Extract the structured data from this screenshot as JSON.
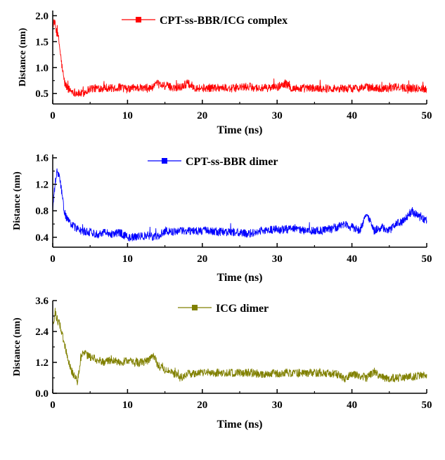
{
  "chart_data": [
    {
      "type": "line",
      "xlabel": "Time (ns)",
      "ylabel": "Distance (nm)",
      "xlim": [
        0,
        50
      ],
      "ylim": [
        0.3,
        2.1
      ],
      "xticks": [
        "0",
        "10",
        "20",
        "30",
        "40",
        "50"
      ],
      "yticks": [
        "0.5",
        "1.0",
        "1.5",
        "2.0"
      ],
      "xtick_values": [
        0,
        10,
        20,
        30,
        40,
        50
      ],
      "ytick_values": [
        0.5,
        1.0,
        1.5,
        2.0
      ],
      "legend_location": "top-center",
      "grid": false,
      "series": [
        {
          "name": "CPT-ss-BBR/ICG complex",
          "color": "#ff0000",
          "x": [
            0,
            0.2,
            0.5,
            0.8,
            1.0,
            1.3,
            1.6,
            2.0,
            2.5,
            3.0,
            3.5,
            4.0,
            5,
            6,
            7,
            8,
            9,
            10,
            11,
            12,
            13,
            14,
            15,
            16,
            17,
            18,
            19,
            20,
            22,
            24,
            26,
            28,
            30,
            31,
            32,
            34,
            36,
            38,
            40,
            42,
            44,
            46,
            48,
            50
          ],
          "values": [
            1.8,
            1.9,
            1.7,
            1.55,
            1.3,
            0.95,
            0.7,
            0.6,
            0.55,
            0.52,
            0.5,
            0.5,
            0.6,
            0.6,
            0.62,
            0.6,
            0.62,
            0.58,
            0.62,
            0.6,
            0.6,
            0.68,
            0.65,
            0.62,
            0.62,
            0.7,
            0.62,
            0.6,
            0.62,
            0.6,
            0.63,
            0.6,
            0.62,
            0.7,
            0.6,
            0.6,
            0.6,
            0.6,
            0.6,
            0.62,
            0.6,
            0.62,
            0.6,
            0.6
          ]
        }
      ]
    },
    {
      "type": "line",
      "xlabel": "Time (ns)",
      "ylabel": "Distance (nm)",
      "xlim": [
        0,
        50
      ],
      "ylim": [
        0.25,
        1.65
      ],
      "xticks": [
        "0",
        "10",
        "20",
        "30",
        "40",
        "50"
      ],
      "yticks": [
        "0.4",
        "0.8",
        "1.2",
        "1.6"
      ],
      "xtick_values": [
        0,
        10,
        20,
        30,
        40,
        50
      ],
      "ytick_values": [
        0.4,
        0.8,
        1.2,
        1.6
      ],
      "legend_location": "top-center",
      "grid": false,
      "series": [
        {
          "name": "CPT-ss-BBR dimer",
          "color": "#0000ff",
          "x": [
            0,
            0.3,
            0.6,
            0.9,
            1.2,
            1.5,
            2,
            3,
            4,
            5,
            6,
            7,
            8,
            9,
            10,
            11,
            12,
            13,
            14,
            15,
            16,
            18,
            20,
            22,
            24,
            26,
            28,
            30,
            32,
            34,
            36,
            38,
            39,
            40,
            41,
            42,
            43,
            44,
            45,
            46,
            47,
            48,
            49,
            50
          ],
          "values": [
            0.8,
            1.2,
            1.4,
            1.3,
            1.1,
            0.8,
            0.65,
            0.55,
            0.48,
            0.48,
            0.45,
            0.48,
            0.45,
            0.47,
            0.4,
            0.4,
            0.42,
            0.42,
            0.4,
            0.5,
            0.48,
            0.5,
            0.5,
            0.48,
            0.48,
            0.45,
            0.5,
            0.52,
            0.52,
            0.5,
            0.5,
            0.55,
            0.6,
            0.55,
            0.5,
            0.75,
            0.5,
            0.55,
            0.5,
            0.6,
            0.65,
            0.8,
            0.7,
            0.65
          ]
        }
      ]
    },
    {
      "type": "line",
      "xlabel": "Time (ns)",
      "ylabel": "Distance (nm)",
      "xlim": [
        0,
        50
      ],
      "ylim": [
        0,
        3.6
      ],
      "xticks": [
        "0",
        "10",
        "20",
        "30",
        "40",
        "50"
      ],
      "yticks": [
        "0.0",
        "1.2",
        "2.4",
        "3.6"
      ],
      "xtick_values": [
        0,
        10,
        20,
        30,
        40,
        50
      ],
      "ytick_values": [
        0,
        1.2,
        2.4,
        3.6
      ],
      "legend_location": "top-center",
      "grid": false,
      "series": [
        {
          "name": "ICG dimer",
          "color": "#808000",
          "x": [
            0,
            0.3,
            0.6,
            1.0,
            1.5,
            2.0,
            2.5,
            3.0,
            3.3,
            3.6,
            4,
            5,
            6,
            7,
            8,
            9,
            10,
            11,
            12,
            13,
            13.5,
            14,
            15,
            16,
            17,
            18,
            20,
            22,
            24,
            26,
            28,
            30,
            32,
            34,
            36,
            38,
            39,
            40,
            42,
            43,
            44,
            46,
            48,
            50
          ],
          "values": [
            2.6,
            3.1,
            2.9,
            2.6,
            2.0,
            1.4,
            0.9,
            0.6,
            0.45,
            1.1,
            1.6,
            1.4,
            1.3,
            1.2,
            1.3,
            1.2,
            1.25,
            1.2,
            1.2,
            1.3,
            1.5,
            1.1,
            0.9,
            0.8,
            0.6,
            0.75,
            0.8,
            0.8,
            0.78,
            0.8,
            0.75,
            0.78,
            0.8,
            0.78,
            0.8,
            0.75,
            0.55,
            0.75,
            0.6,
            0.85,
            0.6,
            0.6,
            0.65,
            0.7
          ]
        }
      ]
    }
  ]
}
